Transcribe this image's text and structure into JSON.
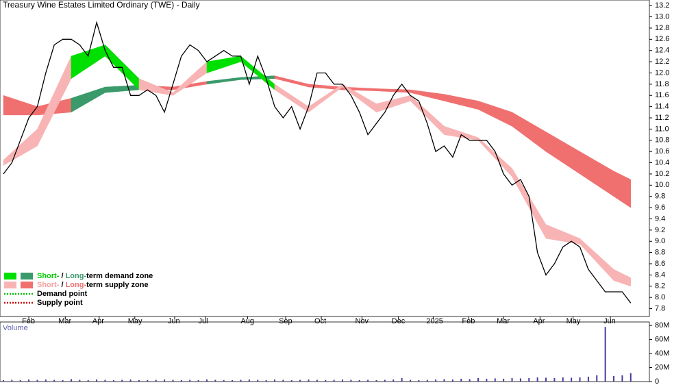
{
  "chart_data": [
    {
      "type": "line",
      "title": "Treasury Wine Estates Limited Ordinary (TWE) - Daily",
      "x": [
        0,
        1,
        2,
        3,
        4,
        5,
        6,
        7,
        8,
        9,
        10,
        11,
        12,
        13,
        14,
        15,
        16,
        17,
        18,
        19,
        20,
        21,
        22,
        23,
        24,
        25,
        26,
        27,
        28,
        29,
        30,
        31,
        32,
        33,
        34,
        35,
        36,
        37,
        38,
        39,
        40,
        41,
        42,
        43,
        44,
        45,
        46,
        47,
        48,
        49,
        50,
        51,
        52,
        53,
        54,
        55,
        56,
        57,
        58,
        59,
        60,
        61,
        62,
        63,
        64,
        65,
        66,
        67,
        68,
        69,
        70,
        71,
        72,
        73,
        74
      ],
      "series": [
        {
          "color": "#000000",
          "values": [
            10.2,
            10.4,
            10.8,
            11.2,
            11.4,
            12.0,
            12.5,
            12.6,
            12.6,
            12.5,
            12.3,
            12.9,
            12.4,
            12.1,
            12.1,
            11.6,
            11.6,
            11.7,
            11.6,
            11.3,
            11.8,
            12.3,
            12.5,
            12.4,
            12.2,
            12.3,
            12.4,
            12.3,
            12.3,
            11.8,
            12.3,
            11.9,
            11.4,
            11.2,
            11.4,
            11.0,
            11.4,
            12.0,
            12.0,
            11.8,
            11.8,
            11.6,
            11.3,
            10.9,
            11.1,
            11.3,
            11.6,
            11.8,
            11.6,
            11.5,
            11.1,
            10.6,
            10.7,
            10.5,
            10.9,
            10.8,
            10.8,
            10.8,
            10.6,
            10.2,
            10.0,
            10.1,
            9.8,
            8.8,
            8.4,
            8.6,
            8.9,
            9.0,
            8.9,
            8.5,
            8.3,
            8.1,
            8.1,
            8.1,
            7.9
          ]
        }
      ],
      "bands": [
        {
          "x": [
            0,
            4,
            8,
            12,
            16,
            20,
            24,
            28,
            32,
            36,
            40,
            44,
            48,
            52,
            56,
            60,
            64,
            68,
            72,
            74
          ],
          "upper": [
            10.45,
            11.0,
            12.3,
            12.5,
            11.9,
            11.65,
            12.2,
            12.3,
            11.8,
            11.4,
            11.8,
            11.45,
            11.6,
            11.05,
            10.85,
            10.3,
            9.3,
            9.05,
            8.5,
            8.35
          ],
          "lower": [
            10.35,
            10.7,
            11.9,
            12.3,
            11.7,
            11.6,
            12.0,
            12.2,
            11.7,
            11.3,
            11.75,
            11.3,
            11.5,
            10.9,
            10.8,
            10.15,
            9.05,
            8.95,
            8.3,
            8.2
          ]
        },
        {
          "x": [
            0,
            4,
            8,
            12,
            16,
            20,
            24,
            28,
            32,
            36,
            40,
            44,
            48,
            52,
            56,
            60,
            64,
            68,
            72,
            74
          ],
          "upper": [
            11.6,
            11.4,
            11.55,
            11.75,
            11.78,
            11.75,
            11.85,
            11.92,
            11.95,
            11.8,
            11.75,
            11.72,
            11.7,
            11.62,
            11.5,
            11.3,
            10.95,
            10.6,
            10.25,
            10.1
          ],
          "lower": [
            11.25,
            11.25,
            11.3,
            11.65,
            11.7,
            11.7,
            11.8,
            11.88,
            11.9,
            11.75,
            11.7,
            11.68,
            11.65,
            11.5,
            11.35,
            11.05,
            10.6,
            10.2,
            9.8,
            9.6
          ]
        }
      ],
      "zone_colors": {
        "short_demand": "#00e000",
        "long_demand": "#3a9a6a",
        "short_supply": "#f8b4b4",
        "long_supply": "#f07070"
      },
      "legend": [
        {
          "parts": [
            "Short-",
            " / ",
            "Long-",
            "term demand zone"
          ],
          "part_colors": [
            "#00cc00",
            "#000000",
            "#3a9a6a",
            "#000000"
          ],
          "swatches": [
            "#00e000",
            "#3a9a6a"
          ]
        },
        {
          "parts": [
            "Short-",
            " / ",
            "Long-",
            "term supply zone"
          ],
          "part_colors": [
            "#f4a0a0",
            "#000000",
            "#f07070",
            "#000000"
          ],
          "swatches": [
            "#f8b4b4",
            "#f07070"
          ]
        },
        {
          "parts": [
            "Demand point"
          ],
          "part_colors": [
            "#000000"
          ],
          "dots": "#00c000"
        },
        {
          "parts": [
            "Supply point"
          ],
          "part_colors": [
            "#000000"
          ],
          "dots": "#d00000"
        }
      ],
      "xlim": [
        -0.4,
        76.2
      ],
      "xticks": [
        {
          "value": 3.0,
          "label": "Feb"
        },
        {
          "value": 7.3,
          "label": "Mar"
        },
        {
          "value": 11.3,
          "label": "Apr"
        },
        {
          "value": 15.5,
          "label": "May"
        },
        {
          "value": 20.2,
          "label": "Jun"
        },
        {
          "value": 23.8,
          "label": "Jul"
        },
        {
          "value": 28.8,
          "label": "Aug"
        },
        {
          "value": 33.3,
          "label": "Sep"
        },
        {
          "value": 37.5,
          "label": "Oct"
        },
        {
          "value": 42.3,
          "label": "Nov"
        },
        {
          "value": 46.6,
          "label": "Dec"
        },
        {
          "value": 50.7,
          "label": "2025"
        },
        {
          "value": 54.9,
          "label": "Feb"
        },
        {
          "value": 59.0,
          "label": "Mar"
        },
        {
          "value": 63.3,
          "label": "Apr"
        },
        {
          "value": 67.2,
          "label": "May"
        },
        {
          "value": 71.6,
          "label": "Jun"
        }
      ],
      "ylim": [
        7.66,
        13.3
      ],
      "yticks": [
        7.8,
        {
          "value": 8,
          "label": "8.0"
        },
        8.2,
        8.4,
        8.6,
        8.8,
        {
          "value": 9,
          "label": "9.0"
        },
        9.2,
        9.4,
        9.6,
        9.8,
        {
          "value": 10,
          "label": "10.0"
        },
        10.2,
        10.4,
        10.6,
        10.8,
        {
          "value": 11,
          "label": "11.0"
        },
        11.2,
        11.4,
        11.6,
        11.8,
        {
          "value": 12,
          "label": "12.0"
        },
        12.2,
        12.4,
        12.6,
        12.8,
        {
          "value": 13,
          "label": "13.0"
        },
        13.2
      ]
    },
    {
      "type": "bar",
      "title": "Volume",
      "color": "#4a3aa0",
      "values": [
        2000000,
        2500000,
        2000000,
        3000000,
        2500000,
        3000000,
        2500000,
        2000000,
        3500000,
        2500000,
        2000000,
        3000000,
        2500000,
        2000000,
        2500000,
        3000000,
        2000000,
        2000000,
        2500000,
        3000000,
        2500000,
        2000000,
        2500000,
        2000000,
        3000000,
        2500000,
        2000000,
        2000000,
        2500000,
        3000000,
        2500000,
        2000000,
        3000000,
        2500000,
        2000000,
        2500000,
        3000000,
        2500000,
        2000000,
        2500000,
        3000000,
        2500000,
        2000000,
        2500000,
        2000000,
        2500000,
        3000000,
        5000000,
        2500000,
        2000000,
        2500000,
        3000000,
        3500000,
        3000000,
        4000000,
        3500000,
        5000000,
        4000000,
        4500000,
        4000000,
        5000000,
        4500000,
        5000000,
        6000000,
        5500000,
        5000000,
        6000000,
        5500000,
        6000000,
        7000000,
        9000000,
        78000000,
        8000000,
        9000000,
        12000000
      ],
      "ylim": [
        0,
        85000000
      ],
      "yticks": [
        0,
        {
          "value": 20000000,
          "label": "20M"
        },
        {
          "value": 40000000,
          "label": "40M"
        },
        {
          "value": 60000000,
          "label": "60M"
        },
        {
          "value": 80000000,
          "label": "80M"
        }
      ]
    }
  ]
}
